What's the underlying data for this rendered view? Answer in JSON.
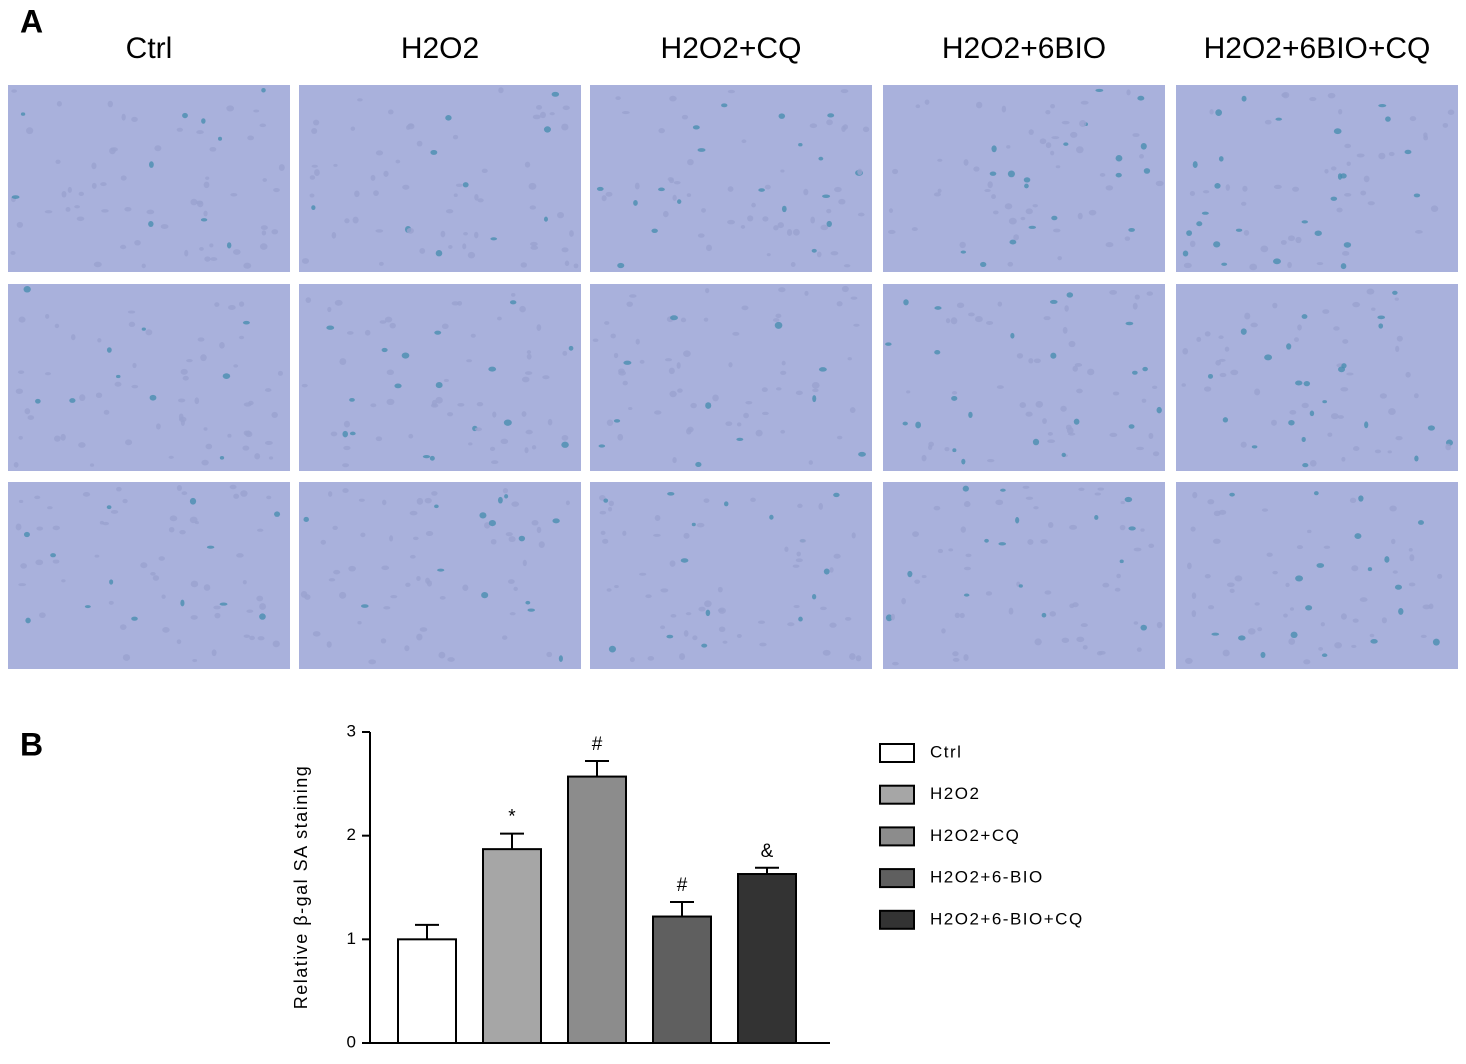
{
  "panel_labels": [
    "A",
    "B"
  ],
  "micrograph_columns": [
    "Ctrl",
    "H2O2",
    "H2O2+CQ",
    "H2O2+6BIO",
    "H2O2+6BIO+CQ"
  ],
  "chart_data": {
    "type": "bar",
    "y_label": "Relative β-gal SA staining",
    "categories": [
      "Ctrl",
      "H2O2",
      "H2O2+CQ",
      "H2O2+6-BIO",
      "H2O2+6-BIO+CQ"
    ],
    "values": [
      1.0,
      1.87,
      2.57,
      1.22,
      1.63
    ],
    "errors": [
      0.14,
      0.15,
      0.15,
      0.14,
      0.06
    ],
    "annotations": [
      null,
      "*",
      "#",
      "#",
      "&"
    ],
    "colors": [
      "#ffffff",
      "#a6a6a6",
      "#8c8c8c",
      "#5f5f5f",
      "#333333"
    ],
    "ylim": [
      0,
      3
    ],
    "yticks": [
      0,
      1,
      2,
      3
    ]
  }
}
